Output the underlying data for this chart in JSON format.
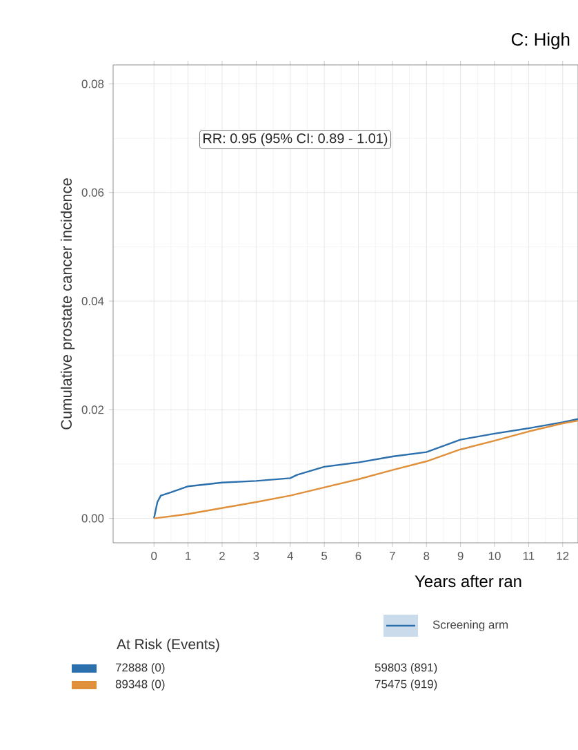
{
  "chart_data": {
    "type": "line",
    "title": "C: High",
    "xlabel": "Years after ran",
    "ylabel": "Cumulative prostate cancer incidence",
    "xlim": [
      -1.2,
      12.45
    ],
    "ylim": [
      -0.0045,
      0.0835
    ],
    "xticks": [
      0,
      1,
      2,
      3,
      4,
      5,
      6,
      7,
      8,
      9,
      10,
      11,
      12
    ],
    "yticks": [
      {
        "value": 0,
        "label": "0.00"
      },
      {
        "value": 0.02,
        "label": "0.02"
      },
      {
        "value": 0.04,
        "label": "0.04"
      },
      {
        "value": 0.06,
        "label": "0.06"
      },
      {
        "value": 0.08,
        "label": "0.08"
      }
    ],
    "grid": true,
    "legend": "bottom",
    "series": [
      {
        "name": "Screening arm",
        "color": "#2c6fad",
        "x": [
          0,
          0.1,
          0.2,
          0.5,
          1,
          2,
          3,
          4,
          4.2,
          5,
          6,
          7,
          8,
          9,
          10,
          11,
          12,
          12.45
        ],
        "values": [
          0,
          0.003,
          0.0042,
          0.0048,
          0.0059,
          0.0066,
          0.0069,
          0.0074,
          0.008,
          0.0095,
          0.0103,
          0.0114,
          0.0122,
          0.0145,
          0.0156,
          0.0166,
          0.0177,
          0.0183
        ]
      },
      {
        "color": "#e0903a",
        "x": [
          0,
          1,
          2,
          3,
          4,
          5,
          6,
          7,
          8,
          9,
          10,
          11,
          12,
          12.45
        ],
        "values": [
          0,
          0.0008,
          0.0019,
          0.003,
          0.0042,
          0.0057,
          0.0072,
          0.0089,
          0.0105,
          0.0127,
          0.0143,
          0.016,
          0.0175,
          0.018
        ]
      }
    ],
    "annotations": [
      "RR: 0.95 (95% CI: 0.89 - 1.01)",
      "At Risk (Events)",
      "72888 (0)",
      "89348 (0)",
      "59803 (891)",
      "75475 (919)"
    ]
  }
}
